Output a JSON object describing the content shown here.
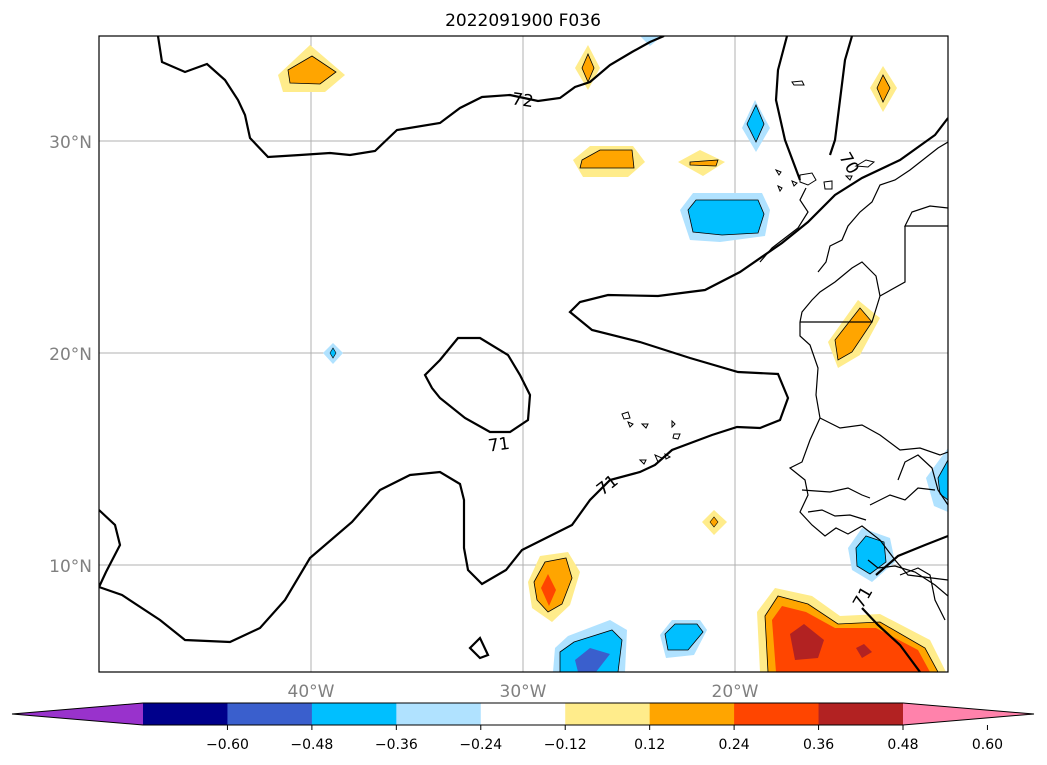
{
  "title": "2022091900 F036",
  "lat_labels": [
    "30°N",
    "20°N",
    "10°N"
  ],
  "lon_labels": [
    "40°W",
    "30°W",
    "20°W"
  ],
  "contour_labels": [
    "72",
    "70",
    "71",
    "71",
    "71"
  ],
  "colorbar": {
    "ticks": [
      "−0.60",
      "−0.48",
      "−0.36",
      "−0.24",
      "−0.12",
      "0.12",
      "0.24",
      "0.36",
      "0.48",
      "0.60"
    ],
    "colors": [
      "#9932cc",
      "#00008b",
      "#3a5fcd",
      "#00bfff",
      "#b0e2ff",
      "#ffffff",
      "#ffec8b",
      "#ffa500",
      "#ff4500",
      "#b22222",
      "#ff82ab"
    ]
  }
}
